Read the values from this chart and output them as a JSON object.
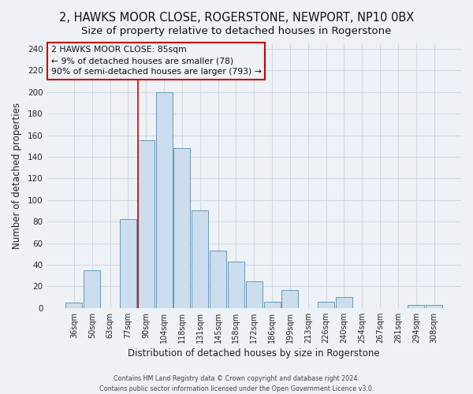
{
  "title": "2, HAWKS MOOR CLOSE, ROGERSTONE, NEWPORT, NP10 0BX",
  "subtitle": "Size of property relative to detached houses in Rogerstone",
  "xlabel": "Distribution of detached houses by size in Rogerstone",
  "ylabel": "Number of detached properties",
  "bar_labels": [
    "36sqm",
    "50sqm",
    "63sqm",
    "77sqm",
    "90sqm",
    "104sqm",
    "118sqm",
    "131sqm",
    "145sqm",
    "158sqm",
    "172sqm",
    "186sqm",
    "199sqm",
    "213sqm",
    "226sqm",
    "240sqm",
    "254sqm",
    "267sqm",
    "281sqm",
    "294sqm",
    "308sqm"
  ],
  "bar_values": [
    5,
    35,
    0,
    82,
    155,
    200,
    148,
    90,
    53,
    43,
    25,
    6,
    17,
    0,
    6,
    10,
    0,
    0,
    0,
    3,
    3
  ],
  "bar_color": "#ccdded",
  "bar_edge_color": "#6699bb",
  "vline_color": "#cc0000",
  "vline_position": 4,
  "annotation_title": "2 HAWKS MOOR CLOSE: 85sqm",
  "annotation_line1": "← 9% of detached houses are smaller (78)",
  "annotation_line2": "90% of semi-detached houses are larger (793) →",
  "annotation_box_color": "#cc0000",
  "ylim": [
    0,
    245
  ],
  "yticks": [
    0,
    20,
    40,
    60,
    80,
    100,
    120,
    140,
    160,
    180,
    200,
    220,
    240
  ],
  "footer1": "Contains HM Land Registry data © Crown copyright and database right 2024.",
  "footer2": "Contains public sector information licensed under the Open Government Licence v3.0.",
  "bg_color": "#eef2f7",
  "grid_color": "#d0d8e4",
  "title_fontsize": 10.5,
  "subtitle_fontsize": 9.5,
  "bar_width": 0.92
}
